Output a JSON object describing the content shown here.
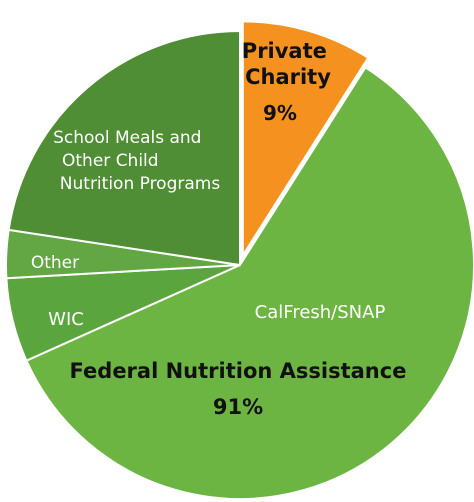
{
  "chart_data": {
    "type": "pie",
    "title": "",
    "slices": [
      {
        "label": "Private Charity",
        "value": 9,
        "value_label": "9%",
        "color": "#f5911f",
        "exploded": true,
        "segment": "private"
      },
      {
        "label": "CalFresh/SNAP",
        "value": 59.3,
        "color": "#6db543",
        "segment": "federal"
      },
      {
        "label": "WIC",
        "value": 5.8,
        "color": "#5aa53d",
        "segment": "federal"
      },
      {
        "label": "Other",
        "value": 3.3,
        "color": "#62a744",
        "segment": "federal"
      },
      {
        "label": "School Meals and Other Child Nutrition Programs",
        "value": 22.6,
        "color": "#4f8e34",
        "segment": "federal"
      }
    ],
    "group_label": {
      "label": "Federal Nutrition Assistance",
      "value_label": "91%"
    },
    "private_label_lines": [
      "Private",
      "Charity"
    ],
    "school_label_lines": [
      "School Meals and",
      "Other Child",
      "Nutrition Programs"
    ]
  },
  "colors": {
    "stroke": "#ffffff",
    "label_light": "#ffffff",
    "label_dark": "#111111"
  }
}
